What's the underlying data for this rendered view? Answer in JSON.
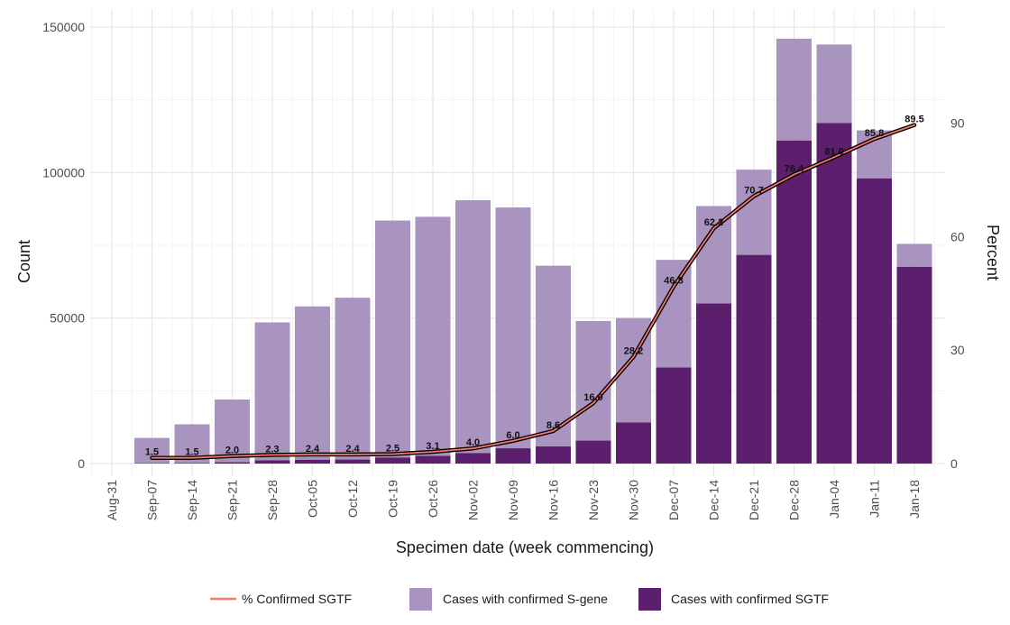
{
  "chart_data": {
    "type": "bar",
    "stacked": true,
    "xlabel": "Specimen date (week commencing)",
    "ylabel": "Count",
    "y2label": "Percent",
    "ylim": [
      0,
      150000
    ],
    "y2lim": [
      0,
      115.4
    ],
    "yticks": [
      0,
      50000,
      100000,
      150000
    ],
    "y2ticks": [
      0,
      30,
      60,
      90
    ],
    "categories": [
      "Aug-31",
      "Sep-07",
      "Sep-14",
      "Sep-21",
      "Sep-28",
      "Oct-05",
      "Oct-12",
      "Oct-19",
      "Oct-26",
      "Nov-02",
      "Nov-09",
      "Nov-16",
      "Nov-23",
      "Nov-30",
      "Dec-07",
      "Dec-14",
      "Dec-21",
      "Dec-28",
      "Jan-04",
      "Jan-11",
      "Jan-18"
    ],
    "series": [
      {
        "name": "Cases with confirmed SGTF",
        "color": "#5b1f6e",
        "values": [
          null,
          130,
          200,
          440,
          1100,
          1300,
          1370,
          2080,
          2630,
          3620,
          5250,
          5880,
          7880,
          14100,
          33000,
          55000,
          71700,
          111000,
          117000,
          98000,
          67600
        ]
      },
      {
        "name": "Cases with confirmed S-gene",
        "color": "#a993bf",
        "values": [
          null,
          8670,
          13300,
          21560,
          47400,
          52700,
          55630,
          81420,
          82170,
          86880,
          82750,
          62120,
          41120,
          35900,
          37000,
          33500,
          29300,
          35000,
          27000,
          16500,
          7900
        ]
      }
    ],
    "line": {
      "name": "% Confirmed SGTF",
      "color": "#f8766d",
      "values": [
        null,
        1.5,
        1.5,
        2.0,
        2.3,
        2.4,
        2.4,
        2.5,
        3.1,
        4.0,
        6.0,
        8.6,
        16.0,
        28.2,
        46.8,
        62.2,
        70.7,
        76.4,
        81.0,
        85.8,
        89.5
      ],
      "labels": [
        "",
        "1.5",
        "1.5",
        "2.0",
        "2.3",
        "2.4",
        "2.4",
        "2.5",
        "3.1",
        "4.0",
        "6.0",
        "8.6",
        "16.0",
        "28.2",
        "46.8",
        "62.2",
        "70.7",
        "76.4",
        "81.0",
        "85.8",
        "89.5"
      ]
    },
    "legend": {
      "position": "bottom",
      "entries": [
        "% Confirmed SGTF",
        "Cases with confirmed S-gene",
        "Cases with confirmed SGTF"
      ]
    }
  }
}
